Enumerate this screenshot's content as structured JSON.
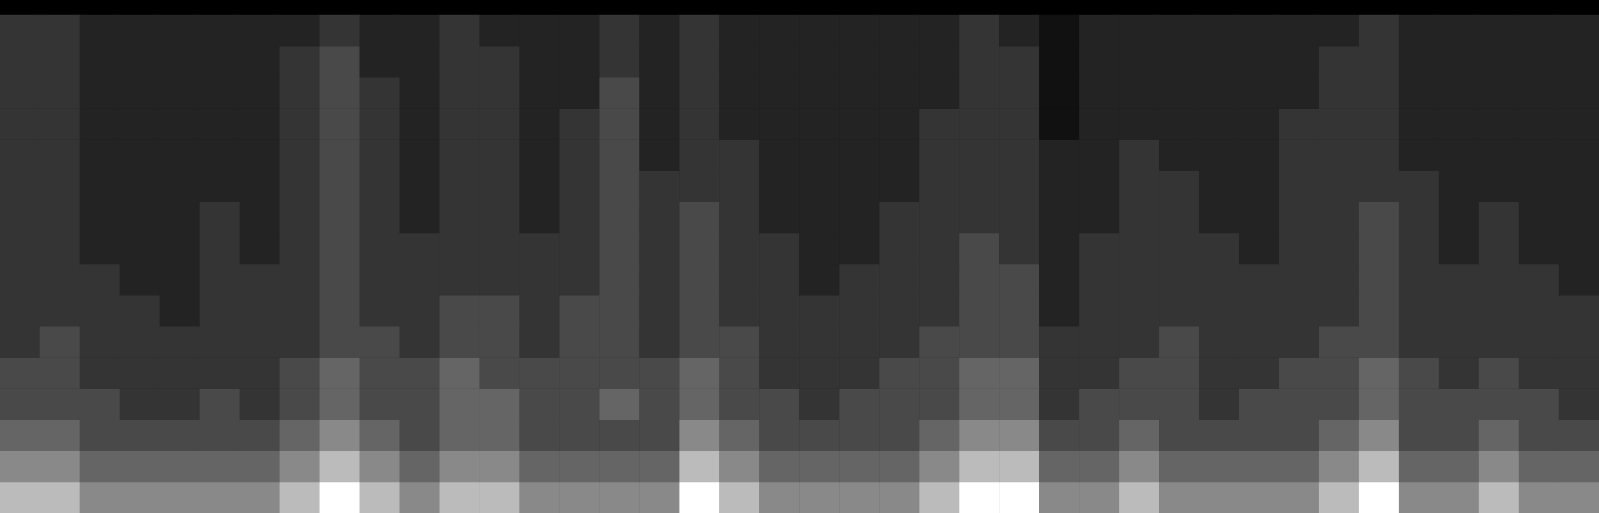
{
  "chart_data": {
    "type": "heatmap",
    "tick_labels": false,
    "grid": false,
    "cells": [
      [
        7,
        7,
        6,
        6,
        6,
        6,
        6,
        7,
        8,
        7,
        6,
        7,
        7,
        6,
        6,
        6,
        6,
        8,
        7,
        6,
        6,
        6,
        6,
        7,
        8,
        8,
        6,
        6,
        7,
        6,
        6,
        6,
        6,
        7,
        8,
        6,
        6,
        7,
        6,
        6
      ],
      [
        6,
        6,
        5,
        5,
        5,
        5,
        5,
        6,
        7,
        6,
        5,
        6,
        6,
        5,
        5,
        5,
        5,
        7,
        6,
        5,
        5,
        5,
        5,
        6,
        7,
        7,
        5,
        5,
        6,
        5,
        5,
        5,
        5,
        6,
        7,
        5,
        5,
        6,
        5,
        5
      ],
      [
        5,
        5,
        4,
        4,
        4,
        4,
        4,
        5,
        6,
        5,
        4,
        5,
        5,
        4,
        4,
        4,
        4,
        6,
        5,
        4,
        4,
        4,
        4,
        5,
        6,
        6,
        4,
        4,
        5,
        4,
        4,
        4,
        4,
        5,
        6,
        4,
        4,
        5,
        4,
        4
      ],
      [
        4,
        4,
        4,
        3,
        3,
        4,
        3,
        4,
        5,
        4,
        4,
        5,
        5,
        4,
        4,
        5,
        4,
        5,
        4,
        4,
        3,
        4,
        4,
        4,
        5,
        5,
        3,
        4,
        4,
        4,
        3,
        4,
        4,
        4,
        5,
        4,
        4,
        4,
        4,
        3
      ],
      [
        4,
        4,
        3,
        3,
        3,
        3,
        3,
        4,
        5,
        4,
        4,
        5,
        4,
        4,
        4,
        4,
        4,
        5,
        4,
        3,
        3,
        3,
        4,
        4,
        5,
        5,
        3,
        3,
        4,
        4,
        3,
        3,
        4,
        4,
        5,
        4,
        3,
        4,
        3,
        3
      ],
      [
        3,
        4,
        3,
        3,
        3,
        3,
        3,
        3,
        4,
        4,
        3,
        4,
        4,
        3,
        4,
        4,
        3,
        4,
        4,
        3,
        3,
        3,
        3,
        4,
        4,
        4,
        3,
        3,
        3,
        4,
        3,
        3,
        3,
        4,
        4,
        3,
        3,
        3,
        3,
        3
      ],
      [
        3,
        3,
        3,
        3,
        2,
        3,
        3,
        3,
        4,
        3,
        3,
        4,
        4,
        3,
        4,
        4,
        3,
        4,
        3,
        3,
        3,
        3,
        3,
        3,
        4,
        4,
        2,
        3,
        3,
        3,
        3,
        3,
        3,
        3,
        4,
        3,
        3,
        3,
        3,
        3
      ],
      [
        3,
        3,
        3,
        2,
        2,
        3,
        3,
        3,
        4,
        3,
        3,
        3,
        3,
        3,
        3,
        4,
        3,
        4,
        3,
        3,
        2,
        3,
        3,
        3,
        4,
        4,
        2,
        3,
        3,
        3,
        3,
        3,
        3,
        3,
        4,
        3,
        3,
        3,
        3,
        2
      ],
      [
        3,
        3,
        2,
        2,
        2,
        3,
        2,
        3,
        4,
        3,
        3,
        3,
        3,
        3,
        3,
        4,
        3,
        4,
        3,
        3,
        2,
        2,
        3,
        3,
        4,
        3,
        2,
        3,
        3,
        3,
        3,
        2,
        3,
        3,
        4,
        3,
        2,
        3,
        2,
        2
      ],
      [
        3,
        3,
        2,
        2,
        2,
        3,
        2,
        3,
        4,
        3,
        2,
        3,
        3,
        2,
        3,
        4,
        3,
        4,
        3,
        2,
        2,
        2,
        3,
        3,
        3,
        3,
        2,
        2,
        3,
        3,
        2,
        2,
        3,
        3,
        4,
        3,
        2,
        3,
        2,
        2
      ],
      [
        3,
        3,
        2,
        2,
        2,
        2,
        2,
        3,
        4,
        3,
        2,
        3,
        3,
        2,
        3,
        4,
        3,
        3,
        3,
        2,
        2,
        2,
        2,
        3,
        3,
        3,
        2,
        2,
        3,
        3,
        2,
        2,
        3,
        3,
        3,
        3,
        2,
        2,
        2,
        2
      ],
      [
        3,
        3,
        2,
        2,
        2,
        2,
        2,
        3,
        4,
        3,
        2,
        3,
        3,
        2,
        3,
        4,
        2,
        3,
        3,
        2,
        2,
        2,
        2,
        3,
        3,
        3,
        2,
        2,
        3,
        2,
        2,
        2,
        3,
        3,
        3,
        2,
        2,
        2,
        2,
        2
      ],
      [
        3,
        3,
        2,
        2,
        2,
        2,
        2,
        3,
        4,
        3,
        2,
        3,
        3,
        2,
        3,
        4,
        2,
        3,
        2,
        2,
        2,
        2,
        2,
        3,
        3,
        3,
        1,
        2,
        2,
        2,
        2,
        2,
        3,
        3,
        3,
        2,
        2,
        2,
        2,
        2
      ],
      [
        3,
        3,
        2,
        2,
        2,
        2,
        2,
        3,
        4,
        3,
        2,
        3,
        3,
        2,
        2,
        4,
        2,
        3,
        2,
        2,
        2,
        2,
        2,
        2,
        3,
        3,
        1,
        2,
        2,
        2,
        2,
        2,
        2,
        3,
        3,
        2,
        2,
        2,
        2,
        2
      ],
      [
        3,
        3,
        2,
        2,
        2,
        2,
        2,
        3,
        4,
        2,
        2,
        3,
        3,
        2,
        2,
        3,
        2,
        3,
        2,
        2,
        2,
        2,
        2,
        2,
        3,
        3,
        1,
        2,
        2,
        2,
        2,
        2,
        2,
        3,
        3,
        2,
        2,
        2,
        2,
        2
      ],
      [
        3,
        3,
        2,
        2,
        2,
        2,
        2,
        2,
        3,
        2,
        2,
        3,
        2,
        2,
        2,
        3,
        2,
        3,
        2,
        2,
        2,
        2,
        2,
        2,
        3,
        2,
        1,
        2,
        2,
        2,
        2,
        2,
        2,
        2,
        3,
        2,
        2,
        2,
        2,
        2
      ]
    ]
  }
}
